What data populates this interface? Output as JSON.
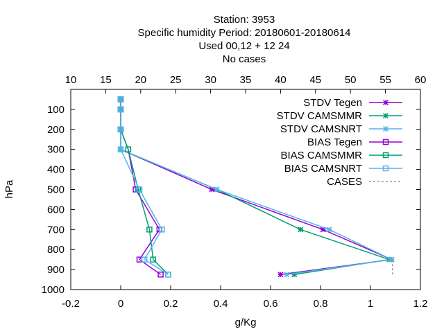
{
  "title_lines": [
    "Station:     3953",
    "Specific humidity  Period: 20180601-20180614",
    "Used  00,12 + 12 24",
    "No cases"
  ],
  "chart_data": {
    "type": "line",
    "xlabel": "g/Kg",
    "ylabel": "hPa",
    "xlim": [
      -0.2,
      1.2
    ],
    "x_ticks": [
      "-0.2",
      "0",
      "0.2",
      "0.4",
      "0.6",
      "0.8",
      "1",
      "1.2"
    ],
    "ylim": [
      1000,
      0
    ],
    "y_ticks": [
      "100",
      "200",
      "300",
      "400",
      "500",
      "600",
      "700",
      "800",
      "900",
      "1000"
    ],
    "x2lim": [
      10,
      60
    ],
    "x2_ticks": [
      "10",
      "15",
      "20",
      "25",
      "30",
      "35",
      "40",
      "45",
      "50",
      "55",
      "60"
    ],
    "grid": false,
    "legend_position": "top-right",
    "series": [
      {
        "name": "STDV Tegen",
        "color": "#9400d3",
        "marker": "x-star",
        "axis": "bottom",
        "points": [
          [
            0.0,
            50
          ],
          [
            0.0,
            100
          ],
          [
            0.0,
            200
          ],
          [
            0.0,
            300
          ],
          [
            0.365,
            500
          ],
          [
            0.81,
            700
          ],
          [
            1.085,
            850
          ],
          [
            0.64,
            925
          ]
        ]
      },
      {
        "name": "STDV CAMSMMR",
        "color": "#009e73",
        "marker": "x-star",
        "axis": "bottom",
        "points": [
          [
            0.0,
            50
          ],
          [
            0.0,
            100
          ],
          [
            0.0,
            200
          ],
          [
            0.0,
            300
          ],
          [
            0.385,
            500
          ],
          [
            0.72,
            700
          ],
          [
            1.075,
            850
          ],
          [
            0.695,
            925
          ]
        ]
      },
      {
        "name": "STDV CAMSNRT",
        "color": "#56b4e9",
        "marker": "x-star",
        "axis": "bottom",
        "points": [
          [
            0.0,
            50
          ],
          [
            0.0,
            100
          ],
          [
            0.0,
            200
          ],
          [
            0.0,
            300
          ],
          [
            0.385,
            500
          ],
          [
            0.835,
            700
          ],
          [
            1.085,
            850
          ],
          [
            0.665,
            925
          ]
        ]
      },
      {
        "name": "BIAS Tegen",
        "color": "#9400d3",
        "marker": "square",
        "axis": "bottom",
        "points": [
          [
            0.0,
            50
          ],
          [
            0.0,
            100
          ],
          [
            0.0,
            200
          ],
          [
            0.03,
            300
          ],
          [
            0.06,
            500
          ],
          [
            0.155,
            700
          ],
          [
            0.075,
            850
          ],
          [
            0.16,
            925
          ]
        ]
      },
      {
        "name": "BIAS CAMSMMR",
        "color": "#009e73",
        "marker": "square",
        "axis": "bottom",
        "points": [
          [
            0.0,
            50
          ],
          [
            0.0,
            100
          ],
          [
            0.0,
            200
          ],
          [
            0.03,
            300
          ],
          [
            0.07,
            500
          ],
          [
            0.115,
            700
          ],
          [
            0.13,
            850
          ],
          [
            0.19,
            925
          ]
        ]
      },
      {
        "name": "BIAS CAMSNRT",
        "color": "#56b4e9",
        "marker": "square",
        "axis": "bottom",
        "points": [
          [
            0.0,
            50
          ],
          [
            0.0,
            100
          ],
          [
            0.0,
            200
          ],
          [
            0.0,
            300
          ],
          [
            0.075,
            500
          ],
          [
            0.165,
            700
          ],
          [
            0.095,
            850
          ],
          [
            0.19,
            925
          ]
        ]
      },
      {
        "name": "CASES",
        "color": "#999999",
        "marker": "none",
        "dash": true,
        "axis": "top",
        "points": [
          [
            56,
            925
          ],
          [
            56,
            850
          ]
        ]
      }
    ]
  }
}
